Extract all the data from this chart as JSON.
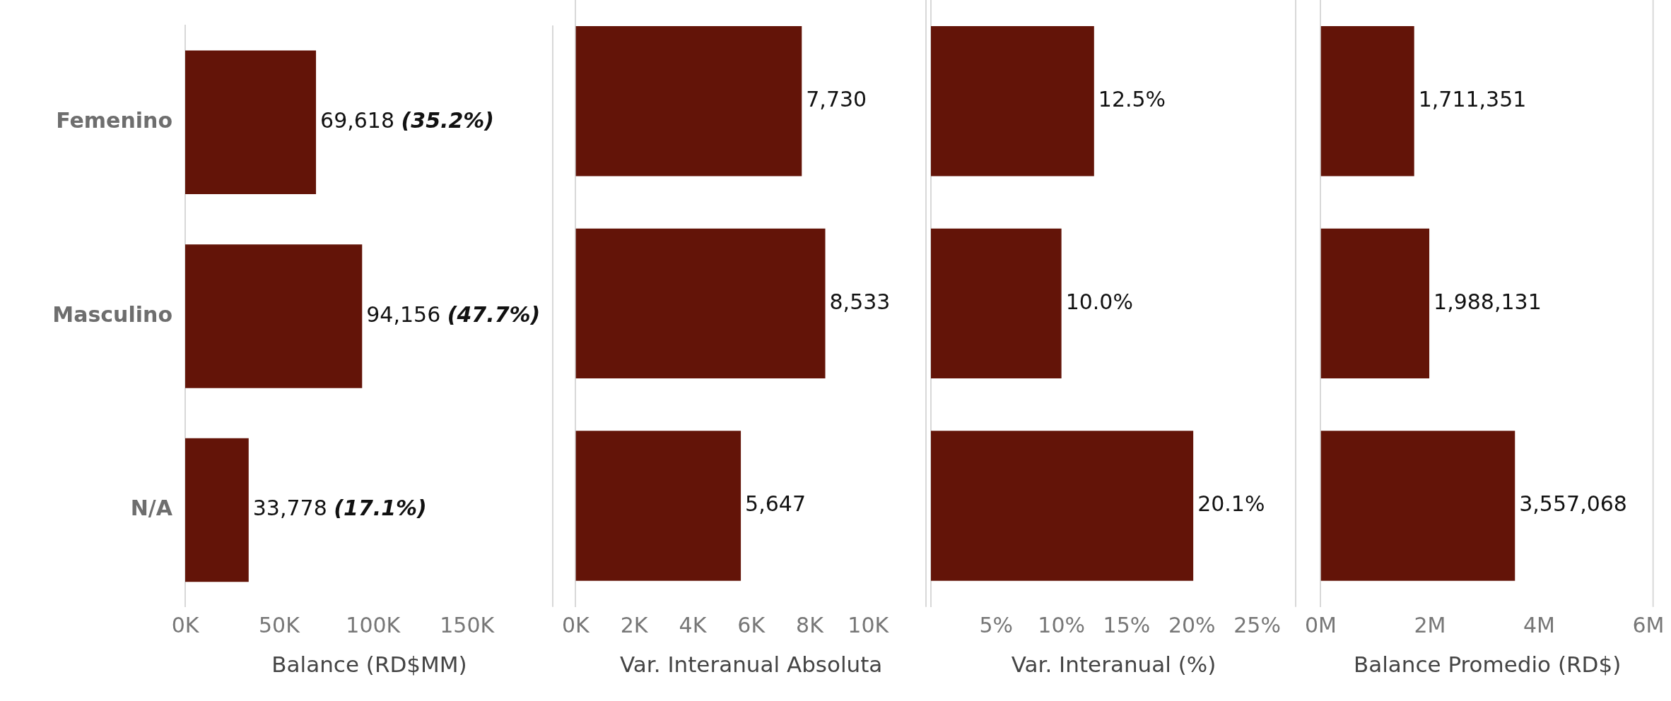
{
  "chart_data": [
    {
      "type": "bar",
      "orientation": "horizontal",
      "xlabel": "Balance (RD$MM)",
      "categories": [
        "Femenino",
        "Masculino",
        "N/A"
      ],
      "values": [
        69618,
        94156,
        33778
      ],
      "color": "#631408",
      "value_labels": [
        "69,618 (35.2%)",
        "94,156 (47.7%)",
        "33,778 (17.1%)"
      ],
      "xlim": [
        0,
        196000
      ],
      "xticks": [
        {
          "value": 0,
          "label": "0K"
        },
        {
          "value": 50000,
          "label": "50K"
        },
        {
          "value": 100000,
          "label": "100K"
        },
        {
          "value": 150000,
          "label": "150K"
        }
      ],
      "grid": false
    },
    {
      "type": "bar",
      "orientation": "horizontal",
      "xlabel": "Var. Interanual Absoluta",
      "categories": [
        null,
        null,
        null
      ],
      "values": [
        7730,
        8533,
        5647
      ],
      "color": "#631408",
      "value_labels": [
        "7,730",
        "8,533",
        "5,647"
      ],
      "xlim": [
        0,
        12000
      ],
      "xticks": [
        {
          "value": 0,
          "label": "0K"
        },
        {
          "value": 2000,
          "label": "2K"
        },
        {
          "value": 4000,
          "label": "4K"
        },
        {
          "value": 6000,
          "label": "6K"
        },
        {
          "value": 8000,
          "label": "8K"
        },
        {
          "value": 10000,
          "label": "10K"
        }
      ],
      "tick_labels": "x",
      "grid": false
    },
    {
      "type": "bar",
      "orientation": "horizontal",
      "xlabel": "Var. Interanual (%)",
      "categories": [
        null,
        null,
        null
      ],
      "values": [
        12.5,
        10.0,
        20.1
      ],
      "color": "#631408",
      "value_labels": [
        "12.5%",
        "10.0%",
        "20.1%"
      ],
      "xlim": [
        0,
        28
      ],
      "xticks": [
        {
          "value": 5,
          "label": "5%"
        },
        {
          "value": 10,
          "label": "10%"
        },
        {
          "value": 15,
          "label": "15%"
        },
        {
          "value": 20,
          "label": "20%"
        },
        {
          "value": 25,
          "label": "25%"
        }
      ],
      "tick_labels": "x",
      "grid": false
    },
    {
      "type": "bar",
      "orientation": "horizontal",
      "xlabel": "Balance Promedio (RD$)",
      "categories": [
        null,
        null,
        null
      ],
      "values": [
        1711351,
        1988131,
        3557068
      ],
      "color": "#631408",
      "value_labels": [
        "1,711,351",
        "1,988,131",
        "3,557,068"
      ],
      "xlim": [
        0,
        6100000
      ],
      "xticks": [
        {
          "value": 0,
          "label": "0M"
        },
        {
          "value": 2000000,
          "label": "2M"
        },
        {
          "value": 4000000,
          "label": "4M"
        },
        {
          "value": 6000000,
          "label": "6M"
        }
      ],
      "tick_labels": "x",
      "grid": false
    }
  ]
}
